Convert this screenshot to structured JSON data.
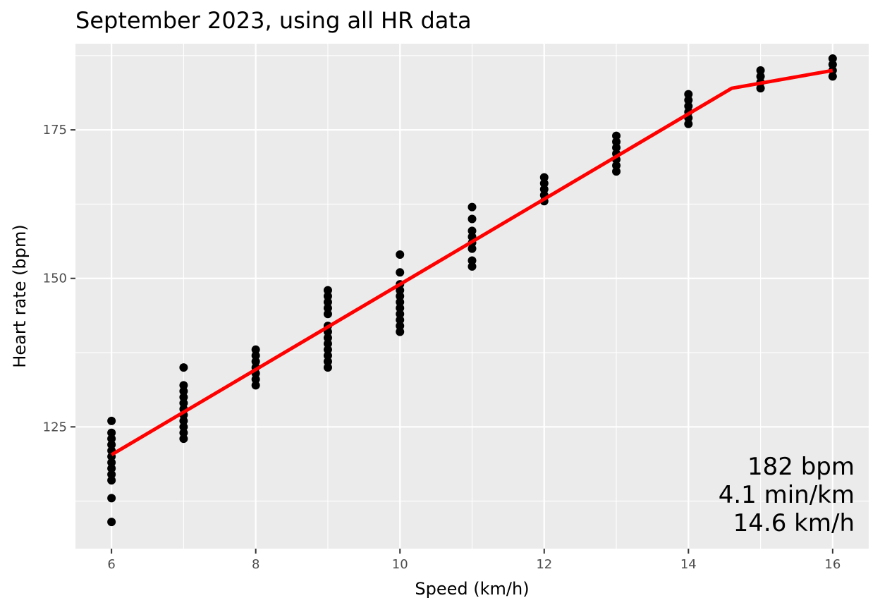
{
  "chart_data": {
    "type": "scatter",
    "title": "September 2023, using all HR data",
    "xlabel": "Speed (km/h)",
    "ylabel": "Heart rate (bpm)",
    "xlim": [
      5.5,
      16.5
    ],
    "ylim": [
      104.5,
      189.5
    ],
    "x_ticks": [
      6,
      8,
      10,
      12,
      14,
      16
    ],
    "y_ticks": [
      125,
      150,
      175
    ],
    "grid": true,
    "legend": "none",
    "colors": {
      "panel_background": "#ebebeb",
      "grid": "#ffffff",
      "points": "#000000",
      "fit_line": "#ff0000"
    },
    "series": [
      {
        "mark": "points",
        "points": [
          [
            6,
            109
          ],
          [
            6,
            113
          ],
          [
            6,
            116
          ],
          [
            6,
            117
          ],
          [
            6,
            118
          ],
          [
            6,
            119
          ],
          [
            6,
            120
          ],
          [
            6,
            121
          ],
          [
            6,
            122
          ],
          [
            6,
            123
          ],
          [
            6,
            124
          ],
          [
            6,
            126
          ],
          [
            7,
            123
          ],
          [
            7,
            124
          ],
          [
            7,
            125
          ],
          [
            7,
            126
          ],
          [
            7,
            127
          ],
          [
            7,
            128
          ],
          [
            7,
            129
          ],
          [
            7,
            130
          ],
          [
            7,
            131
          ],
          [
            7,
            132
          ],
          [
            7,
            135
          ],
          [
            8,
            132
          ],
          [
            8,
            133
          ],
          [
            8,
            134
          ],
          [
            8,
            135
          ],
          [
            8,
            136
          ],
          [
            8,
            137
          ],
          [
            8,
            138
          ],
          [
            9,
            135
          ],
          [
            9,
            136
          ],
          [
            9,
            137
          ],
          [
            9,
            138
          ],
          [
            9,
            139
          ],
          [
            9,
            140
          ],
          [
            9,
            141
          ],
          [
            9,
            142
          ],
          [
            9,
            144
          ],
          [
            9,
            145
          ],
          [
            9,
            146
          ],
          [
            9,
            147
          ],
          [
            9,
            148
          ],
          [
            10,
            141
          ],
          [
            10,
            142
          ],
          [
            10,
            143
          ],
          [
            10,
            144
          ],
          [
            10,
            145
          ],
          [
            10,
            146
          ],
          [
            10,
            147
          ],
          [
            10,
            148
          ],
          [
            10,
            149
          ],
          [
            10,
            151
          ],
          [
            10,
            154
          ],
          [
            11,
            152
          ],
          [
            11,
            153
          ],
          [
            11,
            155
          ],
          [
            11,
            156
          ],
          [
            11,
            157
          ],
          [
            11,
            158
          ],
          [
            11,
            160
          ],
          [
            11,
            162
          ],
          [
            12,
            163
          ],
          [
            12,
            164
          ],
          [
            12,
            165
          ],
          [
            12,
            166
          ],
          [
            12,
            167
          ],
          [
            13,
            168
          ],
          [
            13,
            169
          ],
          [
            13,
            170
          ],
          [
            13,
            171
          ],
          [
            13,
            172
          ],
          [
            13,
            173
          ],
          [
            13,
            174
          ],
          [
            14,
            176
          ],
          [
            14,
            177
          ],
          [
            14,
            178
          ],
          [
            14,
            179
          ],
          [
            14,
            180
          ],
          [
            14,
            181
          ],
          [
            15,
            182
          ],
          [
            15,
            183
          ],
          [
            15,
            184
          ],
          [
            15,
            185
          ],
          [
            16,
            184
          ],
          [
            16,
            185
          ],
          [
            16,
            186
          ],
          [
            16,
            187
          ]
        ]
      },
      {
        "mark": "line",
        "points": [
          [
            6,
            120.3
          ],
          [
            14.6,
            182
          ],
          [
            16,
            185
          ]
        ]
      }
    ],
    "annotation": {
      "lines": [
        "182 bpm",
        "4.1 min/km",
        "14.6 km/h"
      ],
      "position": "bottom-right"
    }
  }
}
